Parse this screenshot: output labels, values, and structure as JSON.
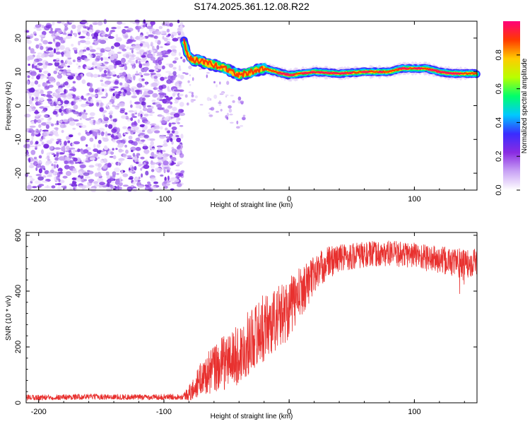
{
  "title": "S174.2025.361.12.08.R22",
  "chart_data": [
    {
      "type": "heatmap",
      "name": "spectrogram",
      "xlabel": "Height of straight line (km)",
      "ylabel": "Frequency (Hz)",
      "xlim": [
        -210,
        150
      ],
      "ylim": [
        -25,
        25
      ],
      "xticks": [
        -200,
        -100,
        0,
        100
      ],
      "yticks": [
        -20,
        -10,
        0,
        10,
        20
      ],
      "noise_region_x": [
        -210,
        -85
      ],
      "ridge": {
        "description": "dominant frequency ridge",
        "x": [
          -85,
          -80,
          -70,
          -60,
          -50,
          -40,
          -30,
          -20,
          -10,
          0,
          20,
          40,
          60,
          80,
          90,
          100,
          110,
          120,
          130,
          140,
          150
        ],
        "y": [
          20,
          14,
          13,
          12,
          11,
          9,
          10,
          11,
          10,
          9,
          10,
          9.5,
          10,
          10,
          11,
          11,
          11,
          10,
          9.5,
          9.5,
          9.5
        ]
      },
      "colorbar": {
        "label": "Normalized spectral amplitude",
        "range": [
          0.0,
          1.0
        ],
        "ticks": [
          "0.0",
          "0.2",
          "0.4",
          "0.6",
          "0.8"
        ],
        "colors": [
          "#ffffff",
          "#c9a3f5",
          "#8a2be2",
          "#3a2cff",
          "#00c8ff",
          "#00ff6a",
          "#b8ff00",
          "#ffcc00",
          "#ff3a00",
          "#ff007a"
        ]
      }
    },
    {
      "type": "line",
      "name": "snr",
      "xlabel": "Height of straight line (km)",
      "ylabel": "SNR (10 * v/v)",
      "xlim": [
        -210,
        150
      ],
      "ylim": [
        0,
        610
      ],
      "xticks": [
        -200,
        -100,
        0,
        100
      ],
      "yticks": [
        0,
        200,
        400,
        600
      ],
      "color": "#e8312f",
      "envelope": {
        "x": [
          -210,
          -160,
          -120,
          -100,
          -85,
          -78,
          -70,
          -60,
          -50,
          -40,
          -30,
          -20,
          -10,
          0,
          10,
          20,
          30,
          40,
          60,
          80,
          100,
          120,
          140,
          150
        ],
        "y": [
          18,
          22,
          20,
          21,
          22,
          40,
          90,
          120,
          150,
          170,
          230,
          270,
          300,
          340,
          400,
          460,
          500,
          520,
          530,
          535,
          530,
          510,
          500,
          510
        ]
      },
      "spread": {
        "x": [
          -210,
          -85,
          -78,
          -60,
          -40,
          -20,
          0,
          20,
          40,
          80,
          120,
          150
        ],
        "y": [
          10,
          10,
          35,
          90,
          110,
          120,
          110,
          70,
          50,
          45,
          50,
          55
        ]
      }
    }
  ]
}
